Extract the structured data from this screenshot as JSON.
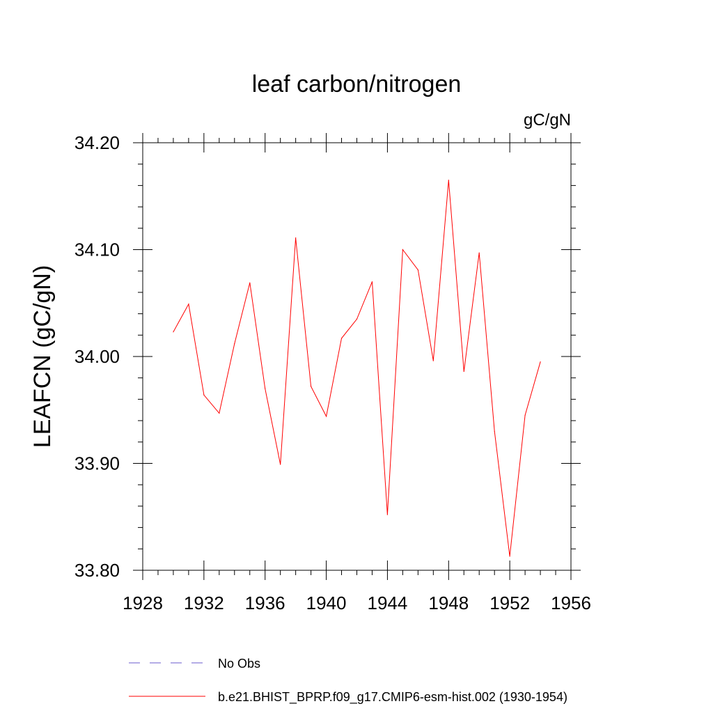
{
  "chart_data": {
    "type": "line",
    "title": "leaf carbon/nitrogen",
    "units_label": "gC/gN",
    "xlabel": "",
    "ylabel": "LEAFCN  (gC/gN)",
    "xlim": [
      1928,
      1956
    ],
    "ylim": [
      33.8,
      34.2
    ],
    "x_ticks": [
      1928,
      1932,
      1936,
      1940,
      1944,
      1948,
      1952,
      1956
    ],
    "x_tick_labels": [
      "1928",
      "1932",
      "1936",
      "1940",
      "1944",
      "1948",
      "1952",
      "1956"
    ],
    "y_ticks": [
      33.8,
      33.9,
      34.0,
      34.1,
      34.2
    ],
    "y_tick_labels": [
      "33.80",
      "33.90",
      "34.00",
      "34.10",
      "34.20"
    ],
    "grid": false,
    "legend_position": "bottom",
    "legend": [
      {
        "label": "No Obs",
        "color": "#6a5acd",
        "style": "dashed"
      },
      {
        "label": "b.e21.BHIST_BPRP.f09_g17.CMIP6-esm-hist.002 (1930-1954)",
        "color": "#ff0000",
        "style": "solid"
      }
    ],
    "series": [
      {
        "name": "b.e21.BHIST_BPRP.f09_g17.CMIP6-esm-hist.002 (1930-1954)",
        "color": "#ff0000",
        "x": [
          1930,
          1931,
          1932,
          1933,
          1934,
          1935,
          1936,
          1937,
          1938,
          1939,
          1940,
          1941,
          1942,
          1943,
          1944,
          1945,
          1946,
          1947,
          1948,
          1949,
          1950,
          1951,
          1952,
          1953,
          1954
        ],
        "values": [
          34.023,
          34.049,
          33.964,
          33.947,
          34.012,
          34.069,
          33.97,
          33.899,
          34.111,
          33.972,
          33.944,
          34.017,
          34.035,
          34.07,
          33.852,
          34.1,
          34.081,
          33.996,
          34.165,
          33.986,
          34.097,
          33.93,
          33.813,
          33.945,
          33.995
        ]
      }
    ]
  }
}
